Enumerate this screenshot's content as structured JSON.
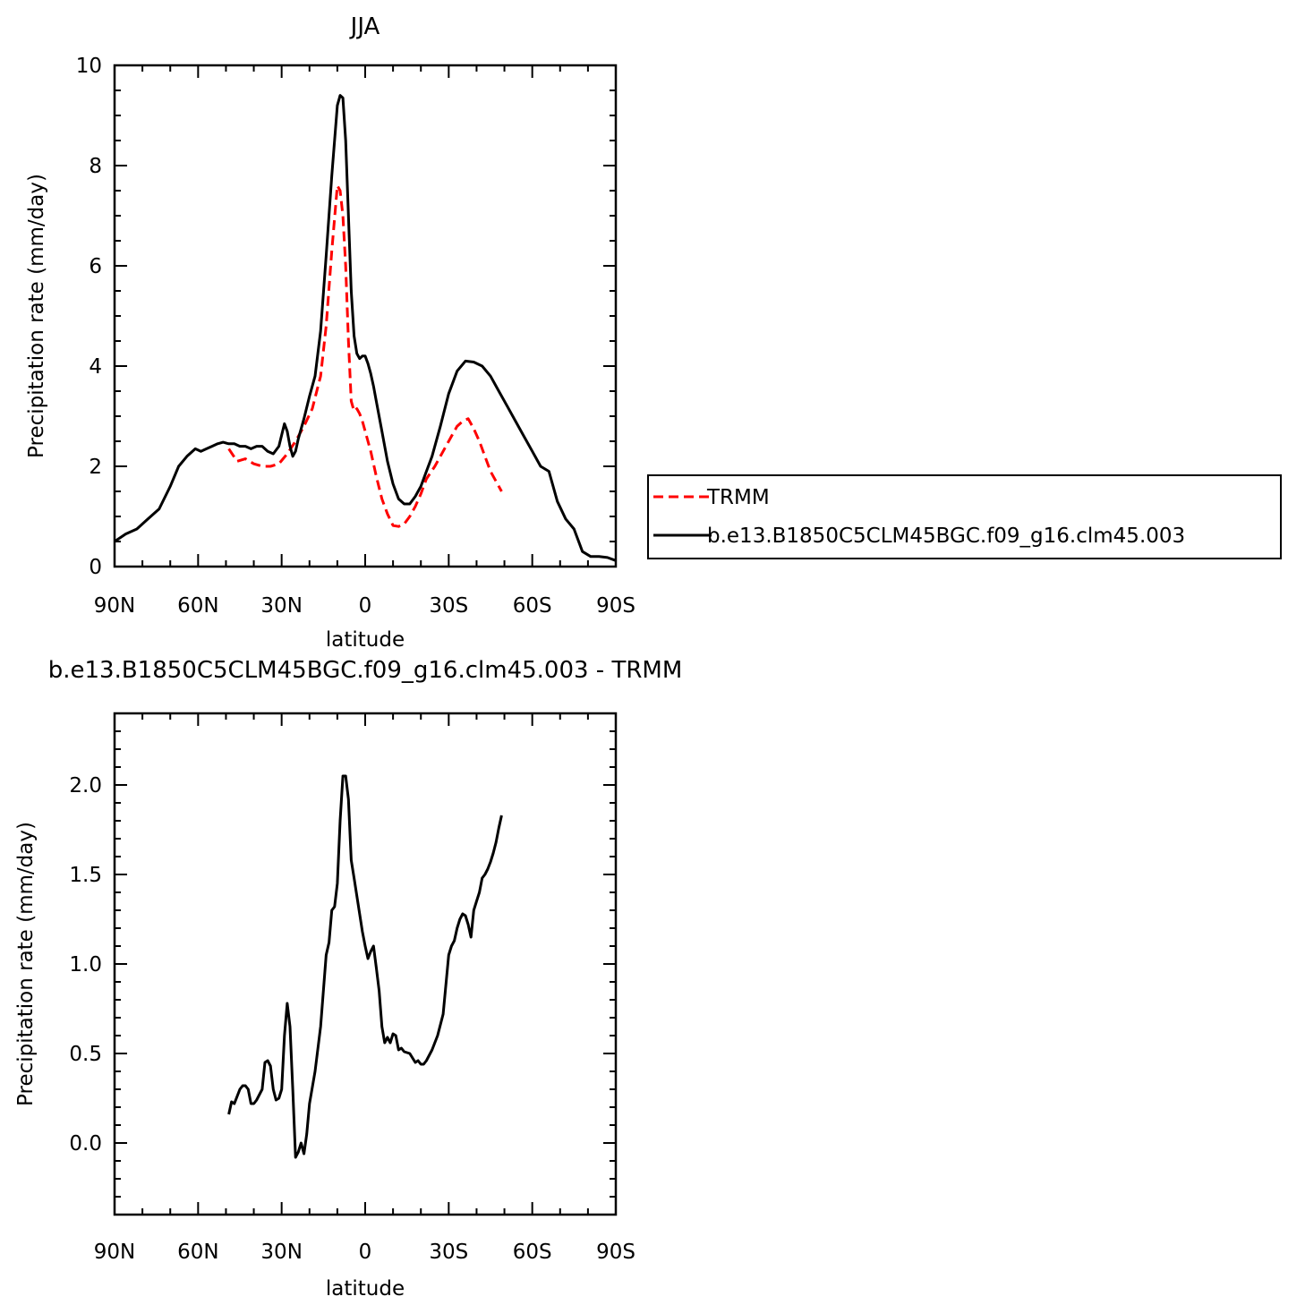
{
  "chart_data": [
    {
      "type": "line",
      "title": "JJA",
      "xlabel": "latitude",
      "ylabel": "Precipitation rate (mm/day)",
      "xlim": [
        90,
        -90
      ],
      "ylim": [
        0,
        10
      ],
      "x_ticks": [
        90,
        60,
        30,
        0,
        -30,
        -60,
        -90
      ],
      "x_tick_labels": [
        "90N",
        "60N",
        "30N",
        "0",
        "30S",
        "60S",
        "90S"
      ],
      "y_ticks": [
        0,
        2,
        4,
        6,
        8,
        10
      ],
      "y_tick_labels": [
        "0",
        "2",
        "4",
        "6",
        "8",
        "10"
      ],
      "legend_position": "right",
      "series": [
        {
          "name": "TRMM",
          "color": "#ff0000",
          "dash": "dashed",
          "x": [
            49,
            46,
            43,
            40,
            37,
            34,
            31,
            28,
            25,
            22,
            19,
            16,
            14,
            12,
            10,
            9,
            8,
            7,
            6,
            5,
            4,
            3,
            2,
            1,
            0,
            -2,
            -4,
            -6,
            -8,
            -10,
            -12,
            -14,
            -16,
            -18,
            -20,
            -22,
            -25,
            -28,
            -31,
            -33,
            -35,
            -37,
            -39,
            -41,
            -43,
            -45,
            -47,
            -49
          ],
          "y": [
            2.35,
            2.1,
            2.15,
            2.05,
            2.0,
            2.0,
            2.05,
            2.25,
            2.5,
            2.8,
            3.15,
            3.8,
            4.8,
            6.3,
            7.6,
            7.5,
            7.0,
            6.0,
            4.5,
            3.3,
            3.1,
            3.15,
            3.05,
            2.9,
            2.7,
            2.3,
            1.8,
            1.35,
            1.05,
            0.82,
            0.8,
            0.85,
            1.0,
            1.2,
            1.45,
            1.75,
            2.0,
            2.3,
            2.6,
            2.8,
            2.9,
            2.95,
            2.75,
            2.5,
            2.2,
            1.9,
            1.7,
            1.5
          ]
        },
        {
          "name": "b.e13.B1850C5CLM45BGC.f09_g16.clm45.003",
          "color": "#000000",
          "dash": "solid",
          "x": [
            90,
            86,
            82,
            78,
            74,
            70,
            67,
            64,
            61,
            59,
            57,
            55,
            53,
            51,
            49,
            47,
            45,
            43,
            41,
            39,
            37,
            35,
            33,
            31,
            29,
            28,
            27,
            26,
            25,
            24,
            22,
            20,
            18,
            16,
            14,
            12,
            10,
            9,
            8,
            7,
            6,
            5,
            4,
            3,
            2,
            1,
            0,
            -1,
            -2,
            -3,
            -4,
            -6,
            -8,
            -10,
            -12,
            -14,
            -16,
            -18,
            -20,
            -22,
            -24,
            -27,
            -30,
            -33,
            -36,
            -39,
            -42,
            -45,
            -48,
            -51,
            -54,
            -57,
            -60,
            -63,
            -66,
            -69,
            -72,
            -75,
            -78,
            -81,
            -84,
            -87,
            -90
          ],
          "y": [
            0.5,
            0.65,
            0.75,
            0.95,
            1.15,
            1.6,
            2.0,
            2.2,
            2.35,
            2.3,
            2.35,
            2.4,
            2.45,
            2.48,
            2.45,
            2.45,
            2.4,
            2.4,
            2.35,
            2.4,
            2.4,
            2.3,
            2.25,
            2.4,
            2.85,
            2.7,
            2.4,
            2.2,
            2.3,
            2.55,
            2.95,
            3.4,
            3.8,
            4.7,
            6.2,
            7.8,
            9.2,
            9.4,
            9.35,
            8.5,
            7.0,
            5.5,
            4.6,
            4.25,
            4.15,
            4.2,
            4.2,
            4.05,
            3.85,
            3.6,
            3.3,
            2.7,
            2.1,
            1.65,
            1.35,
            1.25,
            1.25,
            1.4,
            1.6,
            1.9,
            2.2,
            2.8,
            3.45,
            3.9,
            4.1,
            4.08,
            4.0,
            3.8,
            3.5,
            3.2,
            2.9,
            2.6,
            2.3,
            2.0,
            1.9,
            1.3,
            0.95,
            0.75,
            0.3,
            0.2,
            0.2,
            0.18,
            0.12
          ]
        }
      ]
    },
    {
      "type": "line",
      "title": "b.e13.B1850C5CLM45BGC.f09_g16.clm45.003 - TRMM",
      "xlabel": "latitude",
      "ylabel": "Precipitation rate (mm/day)",
      "xlim": [
        90,
        -90
      ],
      "ylim": [
        -0.4,
        2.4
      ],
      "x_ticks": [
        90,
        60,
        30,
        0,
        -30,
        -60,
        -90
      ],
      "x_tick_labels": [
        "90N",
        "60N",
        "30N",
        "0",
        "30S",
        "60S",
        "90S"
      ],
      "y_ticks": [
        0.0,
        0.5,
        1.0,
        1.5,
        2.0
      ],
      "y_tick_labels": [
        "0.0",
        "0.5",
        "1.0",
        "1.5",
        "2.0"
      ],
      "series": [
        {
          "color": "#000000",
          "dash": "solid",
          "x": [
            49,
            48,
            47,
            46,
            45,
            44,
            43,
            42,
            41,
            40,
            39,
            38,
            37,
            36,
            35,
            34,
            33,
            32,
            31,
            30,
            29,
            28,
            27,
            26,
            25,
            24,
            23,
            22,
            21,
            20,
            18,
            16,
            14,
            13,
            12,
            11,
            10,
            9,
            8,
            7,
            6,
            5,
            4,
            3,
            2,
            1,
            0,
            -1,
            -2,
            -3,
            -4,
            -5,
            -6,
            -7,
            -8,
            -9,
            -10,
            -11,
            -12,
            -13,
            -14,
            -16,
            -18,
            -19,
            -20,
            -21,
            -22,
            -24,
            -26,
            -28,
            -30,
            -31,
            -32,
            -33,
            -34,
            -35,
            -36,
            -37,
            -38,
            -39,
            -40,
            -41,
            -42,
            -43,
            -44,
            -45,
            -46,
            -47,
            -48,
            -49
          ],
          "y": [
            0.16,
            0.23,
            0.22,
            0.26,
            0.3,
            0.32,
            0.32,
            0.3,
            0.22,
            0.22,
            0.24,
            0.27,
            0.3,
            0.45,
            0.46,
            0.43,
            0.3,
            0.24,
            0.25,
            0.3,
            0.6,
            0.78,
            0.65,
            0.3,
            -0.08,
            -0.05,
            0.0,
            -0.06,
            0.05,
            0.22,
            0.4,
            0.65,
            1.05,
            1.12,
            1.3,
            1.32,
            1.45,
            1.8,
            2.05,
            2.05,
            1.92,
            1.58,
            1.48,
            1.38,
            1.28,
            1.18,
            1.1,
            1.03,
            1.07,
            1.1,
            0.98,
            0.85,
            0.65,
            0.56,
            0.59,
            0.56,
            0.61,
            0.6,
            0.52,
            0.53,
            0.51,
            0.5,
            0.45,
            0.46,
            0.44,
            0.44,
            0.46,
            0.52,
            0.6,
            0.72,
            1.05,
            1.1,
            1.13,
            1.2,
            1.25,
            1.28,
            1.27,
            1.22,
            1.15,
            1.3,
            1.35,
            1.4,
            1.48,
            1.5,
            1.53,
            1.57,
            1.62,
            1.68,
            1.76,
            1.83
          ]
        }
      ]
    }
  ]
}
